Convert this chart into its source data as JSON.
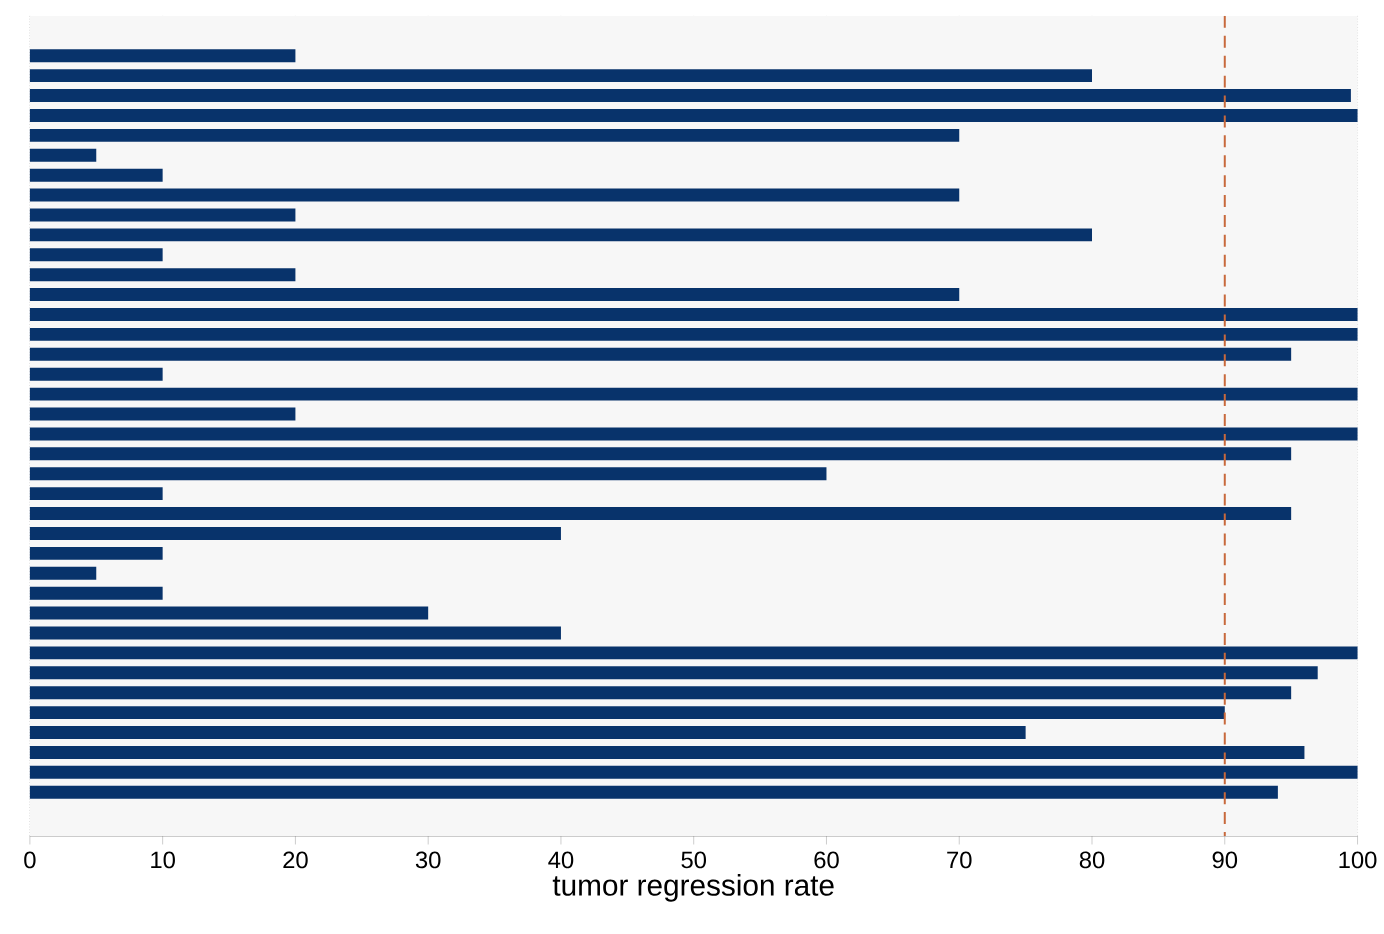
{
  "chart_data": {
    "type": "bar",
    "orientation": "horizontal",
    "xlabel": "tumor regression rate",
    "categories": [
      null,
      null,
      null,
      null,
      null,
      null,
      null,
      null,
      null,
      null,
      null,
      null,
      null,
      null,
      null,
      null,
      null,
      null,
      null,
      null,
      null,
      null,
      null,
      null,
      null,
      null,
      null,
      null,
      null,
      null,
      null,
      null,
      null,
      null,
      null,
      null,
      null,
      null
    ],
    "values": [
      20,
      80,
      99.5,
      100,
      70,
      5,
      10,
      70,
      20,
      80,
      10,
      20,
      70,
      100,
      100,
      95,
      10,
      100,
      20,
      100,
      95,
      60,
      10,
      95,
      40,
      10,
      5,
      10,
      30,
      40,
      100,
      97,
      95,
      90,
      75,
      96,
      100,
      94
    ],
    "color": "#08336b",
    "xlim": [
      0,
      100
    ],
    "xticks": [
      0,
      10,
      20,
      30,
      40,
      50,
      60,
      70,
      80,
      90,
      100
    ],
    "grid": "x",
    "tick_labels": "x",
    "ref_lines": [
      {
        "axis": "x",
        "value": 90,
        "color": "#c8693c",
        "line_style": "dashed"
      }
    ]
  }
}
